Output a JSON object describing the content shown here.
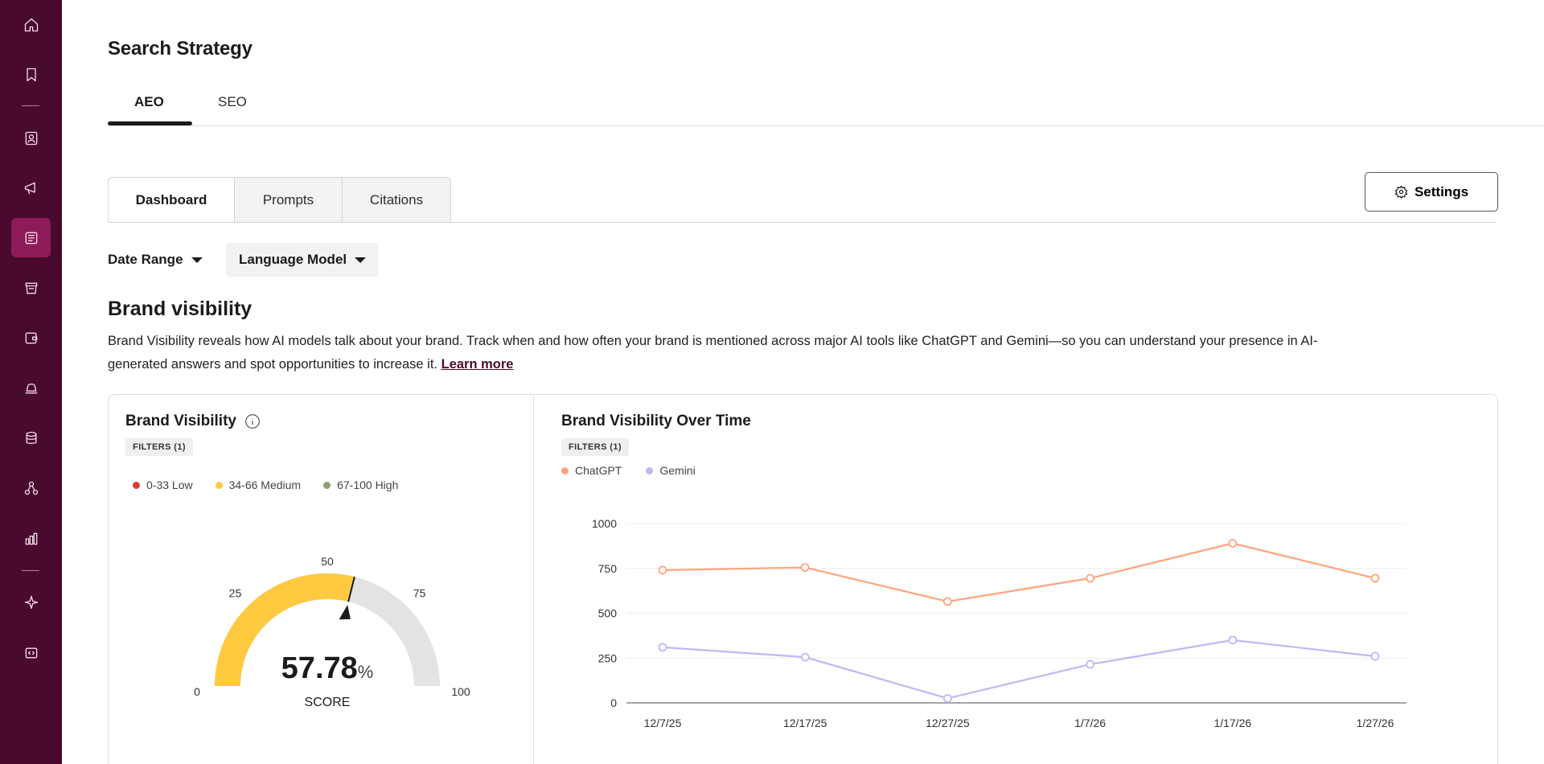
{
  "header": {
    "title": "Search Strategy",
    "tabs": [
      {
        "label": "AEO",
        "active": true
      },
      {
        "label": "SEO",
        "active": false
      }
    ]
  },
  "subtabs": [
    {
      "label": "Dashboard",
      "active": true
    },
    {
      "label": "Prompts",
      "active": false
    },
    {
      "label": "Citations",
      "active": false
    }
  ],
  "settings_label": "Settings",
  "filters": {
    "date_range": "Date Range",
    "language_model": "Language Model"
  },
  "section": {
    "title": "Brand visibility",
    "description": "Brand Visibility reveals how AI models talk about your brand. Track when and how often your brand is mentioned across major AI tools like ChatGPT and Gemini—so you can understand your presence in AI-generated answers and spot opportunities to increase it.",
    "learn_more": "Learn more"
  },
  "gauge_card": {
    "title": "Brand Visibility",
    "filters_chip": "FILTERS (1)",
    "legend": [
      {
        "label": "0-33 Low",
        "color": "#e53935"
      },
      {
        "label": "34-66 Medium",
        "color": "#ffc940"
      },
      {
        "label": "67-100 High",
        "color": "#8f9f6e"
      }
    ],
    "score_value": "57.78",
    "score_unit": "%",
    "score_label": "SCORE",
    "ticks": [
      "0",
      "25",
      "50",
      "75",
      "100"
    ]
  },
  "chart_card": {
    "title": "Brand Visibility Over Time",
    "filters_chip": "FILTERS (1)"
  },
  "colors": {
    "sidebar": "#4a0a2e",
    "sidebar_active": "#8e1b59",
    "gauge_fill": "#ffc940",
    "gauge_track": "#e3e3e3",
    "chatgpt": "#ffa47e",
    "gemini": "#c4b5f5"
  },
  "sidebar_icons": [
    "home-icon",
    "bookmark-icon",
    "contact-card-icon",
    "megaphone-icon",
    "newspaper-icon",
    "inbox-icon",
    "wallet-icon",
    "bell-icon",
    "database-icon",
    "network-icon",
    "bar-chart-icon",
    "sparkle-icon",
    "code-icon"
  ],
  "chart_data": [
    {
      "type": "gauge",
      "value": 57.78,
      "ylim": [
        0,
        100
      ],
      "ticks": [
        0,
        25,
        50,
        75,
        100
      ]
    },
    {
      "type": "line",
      "title": "Brand Visibility Over Time",
      "categories": [
        "12/7/25",
        "12/17/25",
        "12/27/25",
        "1/7/26",
        "1/17/26",
        "1/27/26"
      ],
      "series": [
        {
          "name": "ChatGPT",
          "values": [
            740,
            755,
            565,
            695,
            890,
            695
          ]
        },
        {
          "name": "Gemini",
          "values": [
            310,
            255,
            25,
            215,
            350,
            260
          ]
        }
      ],
      "ylim": [
        0,
        1000
      ],
      "yticks": [
        "0",
        "250",
        "500",
        "750",
        "1000"
      ],
      "grid": true,
      "legend": "top-left"
    }
  ]
}
